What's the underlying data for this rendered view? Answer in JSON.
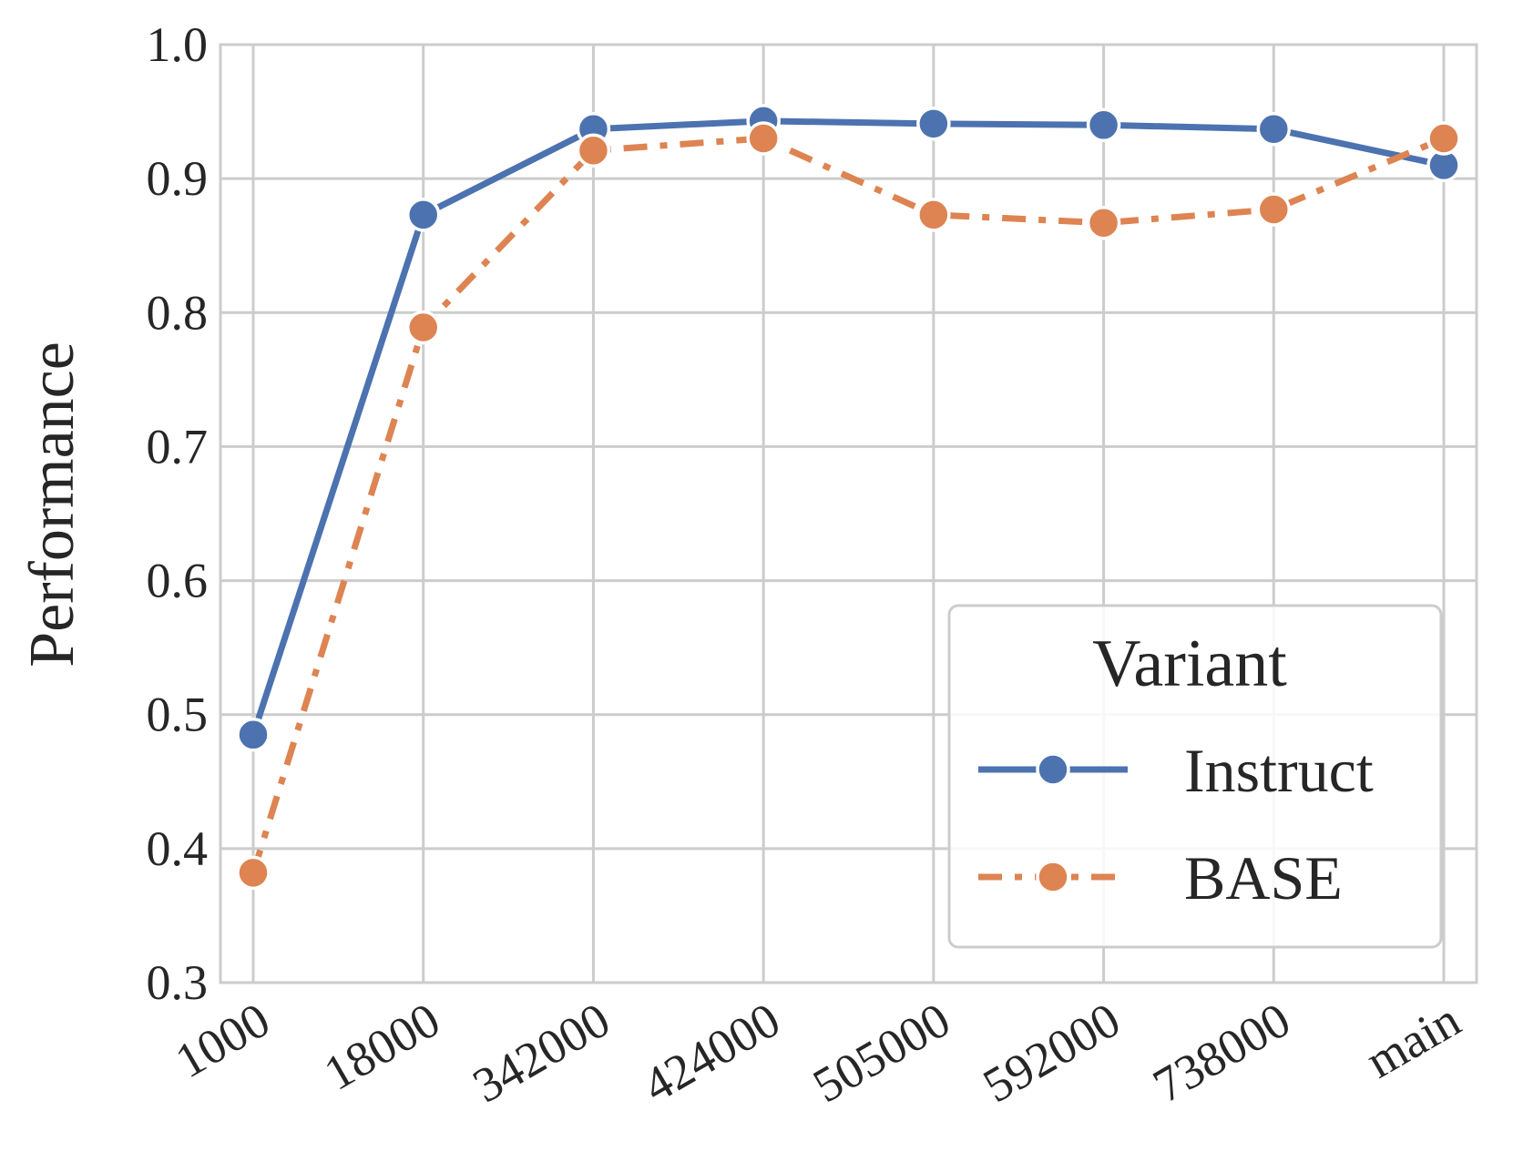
{
  "chart_data": {
    "type": "line",
    "categories": [
      "1000",
      "18000",
      "342000",
      "424000",
      "505000",
      "592000",
      "738000",
      "main"
    ],
    "series": [
      {
        "name": "Instruct",
        "color": "#4c72b0",
        "line_style": "solid",
        "values": [
          0.485,
          0.873,
          0.937,
          0.943,
          0.941,
          0.94,
          0.937,
          0.91
        ]
      },
      {
        "name": "BASE",
        "color": "#dd8452",
        "line_style": "dashdot",
        "values": [
          0.382,
          0.789,
          0.921,
          0.93,
          0.873,
          0.867,
          0.877,
          0.93
        ]
      }
    ],
    "title": "",
    "xlabel": "",
    "ylabel": "Performance",
    "ylim": [
      0.3,
      1.0
    ],
    "yticks": [
      "0.3",
      "0.4",
      "0.5",
      "0.6",
      "0.7",
      "0.8",
      "0.9",
      "1.0"
    ],
    "grid": true,
    "legend": {
      "title": "Variant",
      "placement": "lower-right"
    }
  }
}
